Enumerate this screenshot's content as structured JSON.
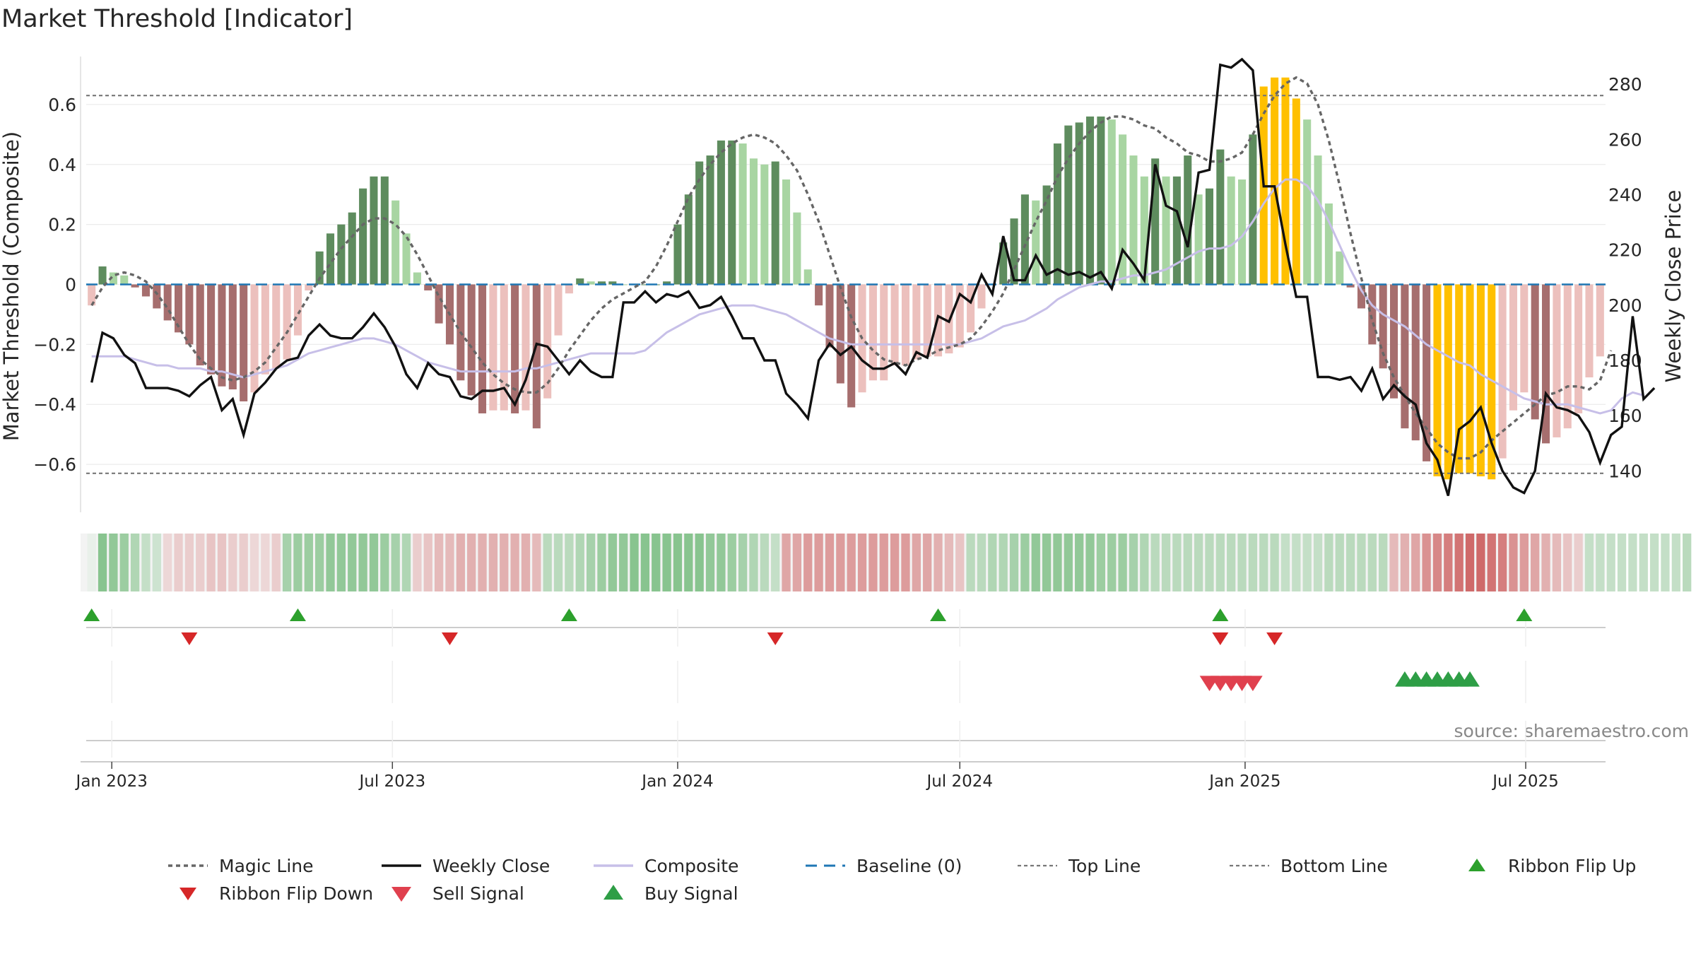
{
  "title": "Market Threshold [Indicator]",
  "source": "source: sharemaestro.com",
  "colors": {
    "magic": "#666666",
    "close": "#111111",
    "composite": "#c7bfe8",
    "baseline": "#1f77b4",
    "refline": "#777777",
    "flip_up": "#2ca02c",
    "flip_down": "#d62728",
    "sell": "#e0404e",
    "buy": "#2e9e46",
    "bar_pos_dark": "#5e8c5e",
    "bar_pos_light": "#a8d5a2",
    "bar_neg_dark": "#a66e6e",
    "bar_neg_light": "#ecc0bd",
    "bar_extreme": "#ffc000"
  },
  "chart_data": {
    "type": "bar",
    "title": "Market Threshold [Indicator]",
    "ylabel": "Market Threshold (Composite)",
    "y2label": "Weekly Close Price",
    "ylim": [
      -0.76,
      0.76
    ],
    "y2lim": [
      125,
      290
    ],
    "yticks": [
      -0.6,
      -0.4,
      -0.2,
      0,
      0.2,
      0.4,
      0.6
    ],
    "ytick_labels": [
      "−0.6",
      "−0.4",
      "−0.2",
      "0",
      "0.2",
      "0.4",
      "0.6"
    ],
    "y2ticks": [
      140,
      160,
      180,
      200,
      220,
      240,
      260,
      280
    ],
    "x_start": "2022-12-19",
    "weeks": 140,
    "xticks": [
      "Jan 2023",
      "Jul 2023",
      "Jan 2024",
      "Jul 2024",
      "Jan 2025",
      "Jul 2025"
    ],
    "xtick_dates": [
      "2023-01-01",
      "2023-07-01",
      "2024-01-01",
      "2024-07-01",
      "2025-01-01",
      "2025-07-01"
    ],
    "top_line": 0.63,
    "bottom_line": -0.63,
    "baseline": 0,
    "bars": [
      -0.07,
      0.06,
      0.04,
      0.03,
      -0.01,
      -0.04,
      -0.08,
      -0.12,
      -0.16,
      -0.2,
      -0.27,
      -0.3,
      -0.34,
      -0.35,
      -0.39,
      -0.36,
      -0.3,
      -0.28,
      -0.25,
      -0.17,
      -0.02,
      0.11,
      0.17,
      0.2,
      0.24,
      0.32,
      0.36,
      0.36,
      0.28,
      0.17,
      0.04,
      -0.02,
      -0.13,
      -0.2,
      -0.32,
      -0.37,
      -0.43,
      -0.42,
      -0.42,
      -0.43,
      -0.42,
      -0.48,
      -0.38,
      -0.17,
      -0.03,
      0.02,
      0.01,
      0.01,
      0.01,
      0.0,
      0.0,
      0.0,
      0.0,
      0.01,
      0.2,
      0.3,
      0.41,
      0.43,
      0.48,
      0.48,
      0.47,
      0.42,
      0.4,
      0.41,
      0.35,
      0.24,
      0.05,
      -0.07,
      -0.21,
      -0.33,
      -0.41,
      -0.36,
      -0.32,
      -0.32,
      -0.27,
      -0.27,
      -0.25,
      -0.24,
      -0.24,
      -0.23,
      -0.21,
      -0.16,
      -0.08,
      0.0,
      0.14,
      0.22,
      0.3,
      0.28,
      0.33,
      0.47,
      0.53,
      0.54,
      0.56,
      0.56,
      0.55,
      0.5,
      0.43,
      0.36,
      0.42,
      0.36,
      0.36,
      0.43,
      0.3,
      0.32,
      0.45,
      0.36,
      0.35,
      0.5,
      0.66,
      0.69,
      0.69,
      0.62,
      0.55,
      0.43,
      0.27,
      0.11,
      -0.01,
      -0.08,
      -0.2,
      -0.28,
      -0.38,
      -0.48,
      -0.52,
      -0.59,
      -0.64,
      -0.65,
      -0.63,
      -0.63,
      -0.64,
      -0.65,
      -0.58,
      -0.42,
      -0.36,
      -0.45,
      -0.53,
      -0.51,
      -0.48,
      -0.43,
      -0.31,
      -0.24
    ],
    "series": [
      {
        "name": "Magic Line",
        "values": [
          -0.07,
          -0.01,
          0.03,
          0.04,
          0.03,
          0.01,
          -0.03,
          -0.08,
          -0.14,
          -0.2,
          -0.25,
          -0.28,
          -0.31,
          -0.32,
          -0.31,
          -0.29,
          -0.26,
          -0.21,
          -0.16,
          -0.1,
          -0.04,
          0.02,
          0.07,
          0.12,
          0.16,
          0.2,
          0.22,
          0.22,
          0.2,
          0.16,
          0.1,
          0.03,
          -0.04,
          -0.1,
          -0.16,
          -0.21,
          -0.26,
          -0.3,
          -0.33,
          -0.35,
          -0.36,
          -0.36,
          -0.33,
          -0.28,
          -0.22,
          -0.17,
          -0.12,
          -0.08,
          -0.05,
          -0.03,
          -0.01,
          0.01,
          0.06,
          0.13,
          0.21,
          0.29,
          0.35,
          0.4,
          0.44,
          0.47,
          0.49,
          0.5,
          0.49,
          0.47,
          0.43,
          0.38,
          0.3,
          0.21,
          0.1,
          -0.01,
          -0.11,
          -0.18,
          -0.22,
          -0.25,
          -0.26,
          -0.27,
          -0.25,
          -0.24,
          -0.22,
          -0.21,
          -0.2,
          -0.18,
          -0.14,
          -0.09,
          -0.03,
          0.05,
          0.13,
          0.21,
          0.28,
          0.36,
          0.42,
          0.47,
          0.51,
          0.54,
          0.56,
          0.56,
          0.55,
          0.53,
          0.52,
          0.49,
          0.47,
          0.44,
          0.43,
          0.41,
          0.41,
          0.42,
          0.44,
          0.5,
          0.57,
          0.63,
          0.67,
          0.69,
          0.67,
          0.6,
          0.48,
          0.33,
          0.17,
          0.02,
          -0.12,
          -0.23,
          -0.31,
          -0.37,
          -0.43,
          -0.48,
          -0.53,
          -0.56,
          -0.58,
          -0.58,
          -0.56,
          -0.52,
          -0.49,
          -0.46,
          -0.43,
          -0.4,
          -0.37,
          -0.36,
          -0.34,
          -0.34,
          -0.35,
          -0.32,
          -0.22
        ]
      },
      {
        "name": "Weekly Close",
        "axis": "right",
        "values": [
          172,
          190,
          188,
          182,
          179,
          170,
          170,
          170,
          169,
          167,
          171,
          174,
          162,
          166,
          153,
          168,
          172,
          177,
          180,
          181,
          189,
          193,
          189,
          188,
          188,
          192,
          197,
          192,
          185,
          175,
          170,
          179,
          175,
          174,
          167,
          166,
          169,
          169,
          170,
          164,
          173,
          186,
          185,
          180,
          175,
          180,
          176,
          174,
          174,
          201,
          201,
          205,
          201,
          204,
          203,
          205,
          199,
          200,
          203,
          196,
          188,
          188,
          180,
          180,
          168,
          164,
          159,
          180,
          186,
          182,
          185,
          180,
          177,
          177,
          179,
          175,
          183,
          181,
          196,
          194,
          204,
          201,
          211,
          204,
          225,
          209,
          209,
          218,
          211,
          213,
          211,
          212,
          210,
          212,
          206,
          220,
          215,
          209,
          251,
          236,
          234,
          221,
          248,
          249,
          287,
          286,
          289,
          285,
          243,
          243,
          222,
          203,
          203,
          174,
          174,
          173,
          174,
          169,
          177,
          166,
          171,
          167,
          164,
          150,
          144,
          131,
          155,
          158,
          163,
          150,
          140,
          134,
          132,
          140,
          168,
          163,
          162,
          160,
          154,
          143,
          153,
          156,
          196,
          166,
          170
        ]
      },
      {
        "name": "Composite",
        "values": [
          -0.24,
          -0.24,
          -0.24,
          -0.24,
          -0.25,
          -0.26,
          -0.27,
          -0.27,
          -0.28,
          -0.28,
          -0.28,
          -0.29,
          -0.29,
          -0.3,
          -0.31,
          -0.3,
          -0.29,
          -0.28,
          -0.27,
          -0.25,
          -0.23,
          -0.22,
          -0.21,
          -0.2,
          -0.19,
          -0.18,
          -0.18,
          -0.19,
          -0.2,
          -0.22,
          -0.24,
          -0.26,
          -0.27,
          -0.28,
          -0.29,
          -0.29,
          -0.29,
          -0.29,
          -0.29,
          -0.29,
          -0.28,
          -0.28,
          -0.27,
          -0.26,
          -0.25,
          -0.24,
          -0.23,
          -0.23,
          -0.23,
          -0.23,
          -0.23,
          -0.22,
          -0.19,
          -0.16,
          -0.14,
          -0.12,
          -0.1,
          -0.09,
          -0.08,
          -0.07,
          -0.07,
          -0.07,
          -0.08,
          -0.09,
          -0.1,
          -0.12,
          -0.14,
          -0.16,
          -0.18,
          -0.19,
          -0.2,
          -0.2,
          -0.2,
          -0.2,
          -0.2,
          -0.2,
          -0.2,
          -0.2,
          -0.2,
          -0.2,
          -0.2,
          -0.19,
          -0.18,
          -0.16,
          -0.14,
          -0.13,
          -0.12,
          -0.1,
          -0.08,
          -0.05,
          -0.03,
          -0.01,
          0.0,
          0.01,
          0.01,
          0.02,
          0.03,
          0.03,
          0.04,
          0.05,
          0.07,
          0.09,
          0.11,
          0.12,
          0.12,
          0.13,
          0.16,
          0.21,
          0.27,
          0.32,
          0.35,
          0.35,
          0.33,
          0.28,
          0.21,
          0.13,
          0.05,
          -0.02,
          -0.07,
          -0.1,
          -0.12,
          -0.14,
          -0.17,
          -0.2,
          -0.22,
          -0.24,
          -0.26,
          -0.27,
          -0.3,
          -0.32,
          -0.34,
          -0.36,
          -0.38,
          -0.39,
          -0.4,
          -0.4,
          -0.4,
          -0.41,
          -0.42,
          -0.43,
          -0.42,
          -0.38,
          -0.36,
          -0.37
        ]
      }
    ],
    "ribbon": [
      0.06,
      0.55,
      0.5,
      0.45,
      0.35,
      0.25,
      0.2,
      -0.15,
      -0.2,
      -0.2,
      -0.2,
      -0.25,
      -0.25,
      -0.2,
      -0.2,
      -0.15,
      -0.15,
      -0.2,
      0.4,
      0.45,
      0.45,
      0.45,
      0.5,
      0.5,
      0.5,
      0.5,
      0.5,
      0.45,
      0.4,
      0.35,
      -0.2,
      -0.25,
      -0.3,
      -0.3,
      -0.35,
      -0.35,
      -0.35,
      -0.35,
      -0.35,
      -0.35,
      -0.35,
      -0.3,
      0.3,
      0.3,
      0.3,
      0.35,
      0.4,
      0.45,
      0.5,
      0.5,
      0.55,
      0.55,
      0.55,
      0.55,
      0.55,
      0.55,
      0.55,
      0.5,
      0.5,
      0.45,
      0.4,
      0.35,
      0.3,
      0.25,
      -0.4,
      -0.4,
      -0.45,
      -0.45,
      -0.45,
      -0.45,
      -0.45,
      -0.45,
      -0.45,
      -0.45,
      -0.45,
      -0.45,
      -0.4,
      -0.4,
      -0.35,
      -0.3,
      -0.25,
      0.3,
      0.3,
      0.35,
      0.35,
      0.4,
      0.45,
      0.5,
      0.5,
      0.5,
      0.5,
      0.5,
      0.5,
      0.45,
      0.45,
      0.45,
      0.4,
      0.35,
      0.3,
      0.3,
      0.3,
      0.3,
      0.3,
      0.3,
      0.3,
      0.3,
      0.3,
      0.3,
      0.3,
      0.3,
      0.25,
      0.25,
      0.25,
      0.25,
      0.3,
      0.3,
      0.3,
      0.3,
      0.3,
      0.3,
      -0.3,
      -0.35,
      -0.4,
      -0.5,
      -0.55,
      -0.6,
      -0.65,
      -0.7,
      -0.7,
      -0.65,
      -0.6,
      -0.5,
      -0.45,
      -0.4,
      -0.35,
      -0.3,
      -0.25,
      -0.2,
      0.25,
      0.25,
      0.25,
      0.25,
      0.25,
      0.25,
      0.25,
      0.25,
      0.25,
      0.3
    ],
    "markers": {
      "ribbon_flip_up": [
        "2022-12-19",
        "2023-05-01",
        "2023-10-23",
        "2024-06-17",
        "2024-12-16",
        "2025-06-30"
      ],
      "ribbon_flip_down": [
        "2023-02-20",
        "2023-08-07",
        "2024-03-04",
        "2024-12-16",
        "2025-01-20"
      ],
      "sell_signal": [
        "2024-12-09",
        "2024-12-16",
        "2024-12-23",
        "2024-12-30",
        "2025-01-06"
      ],
      "buy_signal": [
        "2025-04-14",
        "2025-04-21",
        "2025-04-28",
        "2025-05-05",
        "2025-05-12",
        "2025-05-19",
        "2025-05-26"
      ]
    },
    "legend": [
      "Magic Line",
      "Weekly Close",
      "Composite",
      "Baseline (0)",
      "Top Line",
      "Bottom Line",
      "Ribbon Flip Up",
      "Ribbon Flip Down",
      "Sell Signal",
      "Buy Signal"
    ],
    "legend_position": "bottom",
    "grid": true
  }
}
